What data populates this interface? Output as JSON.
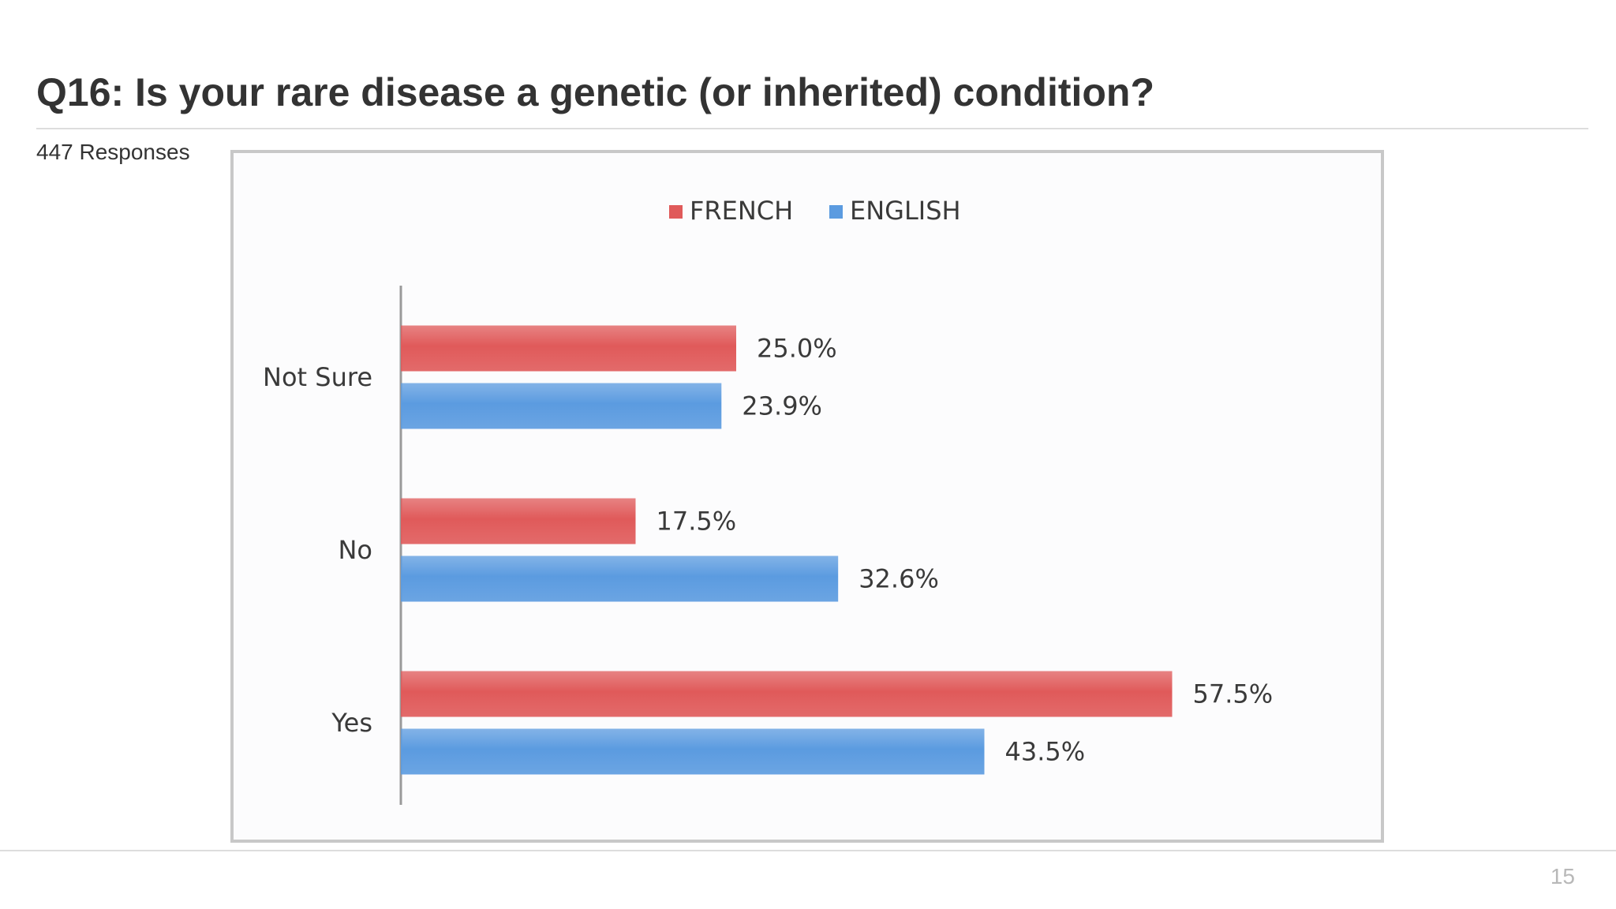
{
  "slide": {
    "title": "Q16: Is your rare disease a genetic (or inherited) condition?",
    "responses": "447 Responses",
    "page_number": "15"
  },
  "colors": {
    "french": "#e05a5a",
    "english": "#5b9be0"
  },
  "chart_data": {
    "type": "bar",
    "orientation": "horizontal",
    "categories": [
      "Not Sure",
      "No",
      "Yes"
    ],
    "series": [
      {
        "name": "FRENCH",
        "values": [
          25.0,
          17.5,
          57.5
        ],
        "labels": [
          "25.0%",
          "17.5%",
          "57.5%"
        ]
      },
      {
        "name": "ENGLISH",
        "values": [
          23.9,
          32.6,
          43.5
        ],
        "labels": [
          "23.9%",
          "32.6%",
          "43.5%"
        ]
      }
    ],
    "xlim": [
      0,
      65
    ],
    "grid": false,
    "legend_position": "top-center",
    "data_labels": true
  }
}
